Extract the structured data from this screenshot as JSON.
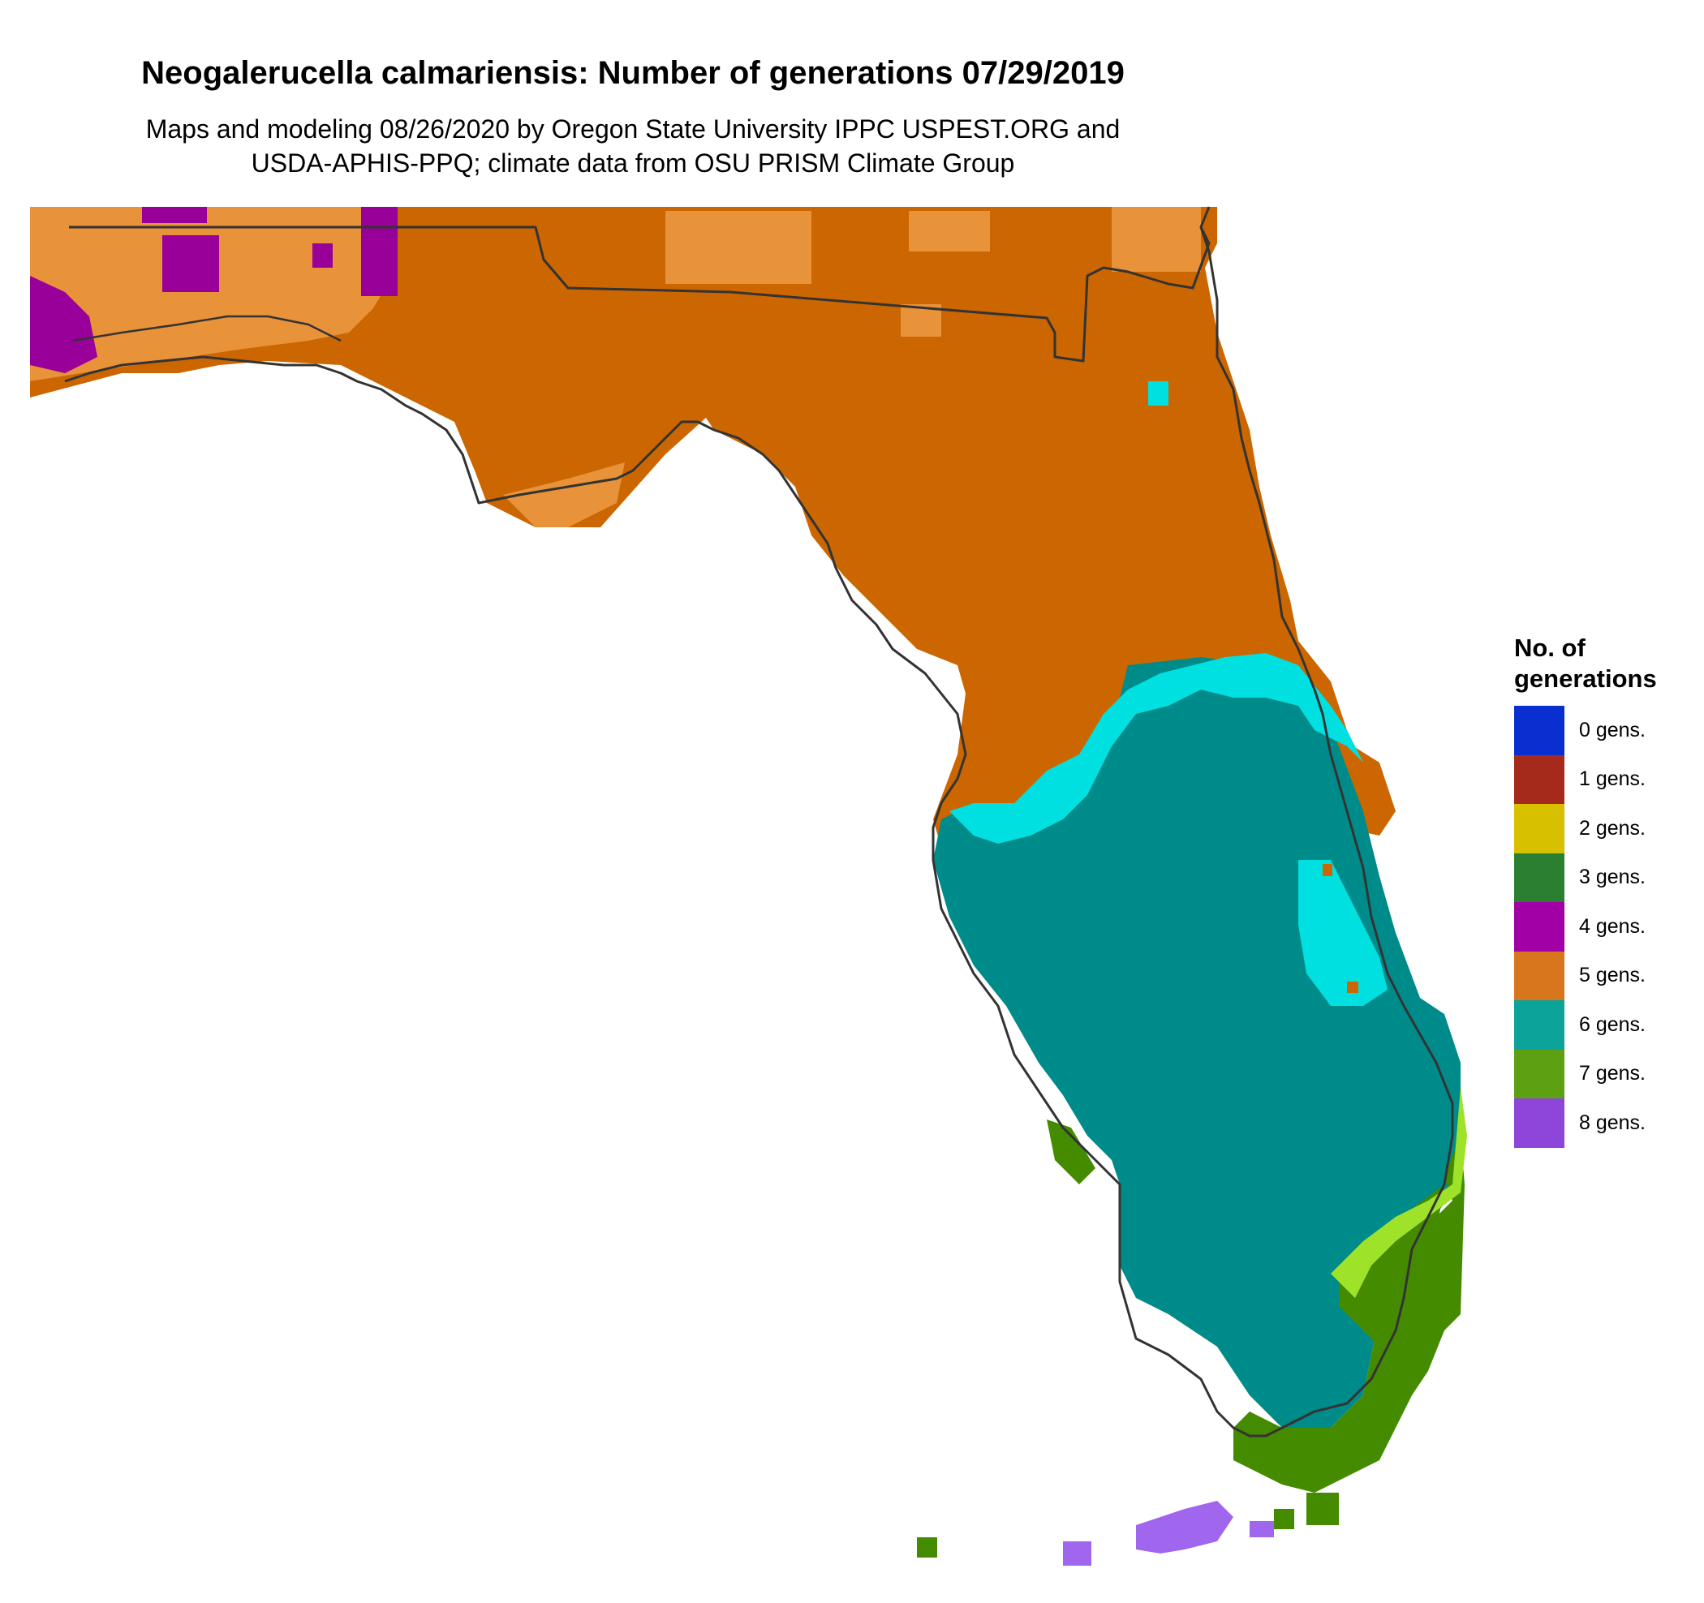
{
  "title": "Neogalerucella calmariensis: Number of generations 07/29/2019",
  "subtitle_line1": "Maps and modeling 08/26/2020 by Oregon State University IPPC USPEST.ORG and",
  "subtitle_line2": "USDA-APHIS-PPQ; climate data from OSU PRISM Climate Group",
  "legend": {
    "title": "No. of\ngenerations",
    "items": [
      {
        "label": "0 gens.",
        "color": "#0a2fd1"
      },
      {
        "label": "1 gens.",
        "color": "#a62a1c"
      },
      {
        "label": "2 gens.",
        "color": "#d7c000"
      },
      {
        "label": "3 gens.",
        "color": "#2a7f30"
      },
      {
        "label": "4 gens.",
        "color": "#a000a6"
      },
      {
        "label": "5 gens.",
        "color": "#d8761e"
      },
      {
        "label": "6 gens.",
        "color": "#0ba39a"
      },
      {
        "label": "7 gens.",
        "color": "#5da012"
      },
      {
        "label": "8 gens.",
        "color": "#8e45d9"
      }
    ]
  },
  "map_colors": {
    "gens5_dark": "#cc6600",
    "gens5_light": "#e8923a",
    "gens4": "#990099",
    "gens6_light": "#00e0e0",
    "gens6": "#008b8b",
    "gens7_dark": "#458b00",
    "gens7_light": "#9ee32a",
    "gens8": "#a066ee",
    "outline": "#333333"
  }
}
